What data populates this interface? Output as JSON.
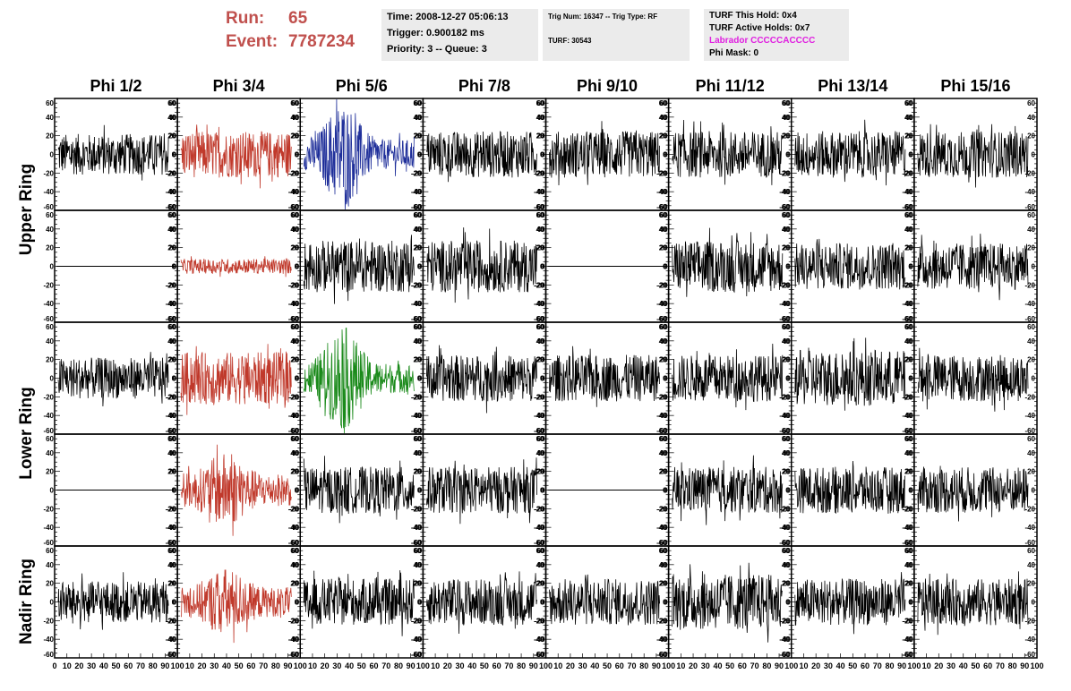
{
  "header": {
    "run_label": "Run:",
    "run_value": "65",
    "event_label": "Event:",
    "event_value": "7787234"
  },
  "info_time": {
    "time": "Time: 2008-12-27 05:06:13",
    "trigger": "Trigger: 0.900182 ms",
    "priority": "Priority: 3 -- Queue: 3"
  },
  "info_trig": {
    "trig": "Trig Num: 16347 -- Trig Type: RF",
    "turf": "TURF: 30543"
  },
  "info_turf": {
    "this_hold": "TURF This Hold: 0x4",
    "active_holds": "TURF Active Holds: 0x7",
    "labrador": "Labrador CCCCCACCCC",
    "phi_mask": "Phi Mask: 0"
  },
  "colors": {
    "black": "#000000",
    "red": "#c0392b",
    "blue": "#1f2f9a",
    "green": "#1a8a1a",
    "header_red": "#c0504d",
    "magenta": "#e020e0",
    "info_bg": "#ebebeb"
  },
  "chart_data": {
    "type": "line",
    "columns": [
      "Phi 1/2",
      "Phi 3/4",
      "Phi 5/6",
      "Phi 7/8",
      "Phi 9/10",
      "Phi 11/12",
      "Phi 13/14",
      "Phi 15/16"
    ],
    "rows": [
      {
        "label": "Upper Ring",
        "panels": 2
      },
      {
        "label": "Lower Ring",
        "panels": 2
      },
      {
        "label": "Nadir Ring",
        "panels": 1
      }
    ],
    "ylim": [
      -60,
      60
    ],
    "y_ticks": [
      60,
      40,
      20,
      0,
      -20,
      -40,
      -60
    ],
    "xlim": [
      0,
      100
    ],
    "x_ticks": [
      "0",
      "10",
      "20",
      "30",
      "40",
      "50",
      "60",
      "70",
      "80",
      "90",
      "100"
    ],
    "waveforms": [
      [
        "n22",
        "r25",
        "b45",
        "n25",
        "n25",
        "n25",
        "n25",
        "n25"
      ],
      [
        "flat",
        "r8",
        "n28",
        "n28",
        "flat",
        "n28",
        "n25",
        "n25"
      ],
      [
        "n22",
        "r28",
        "g45",
        "n25",
        "n25",
        "n25",
        "n30",
        "n25"
      ],
      [
        "flat",
        "r38",
        "n25",
        "n25",
        "flat",
        "n25",
        "n25",
        "n25"
      ],
      [
        "n22",
        "r35",
        "n25",
        "n25",
        "n25",
        "n30",
        "n25",
        "n25"
      ]
    ]
  }
}
